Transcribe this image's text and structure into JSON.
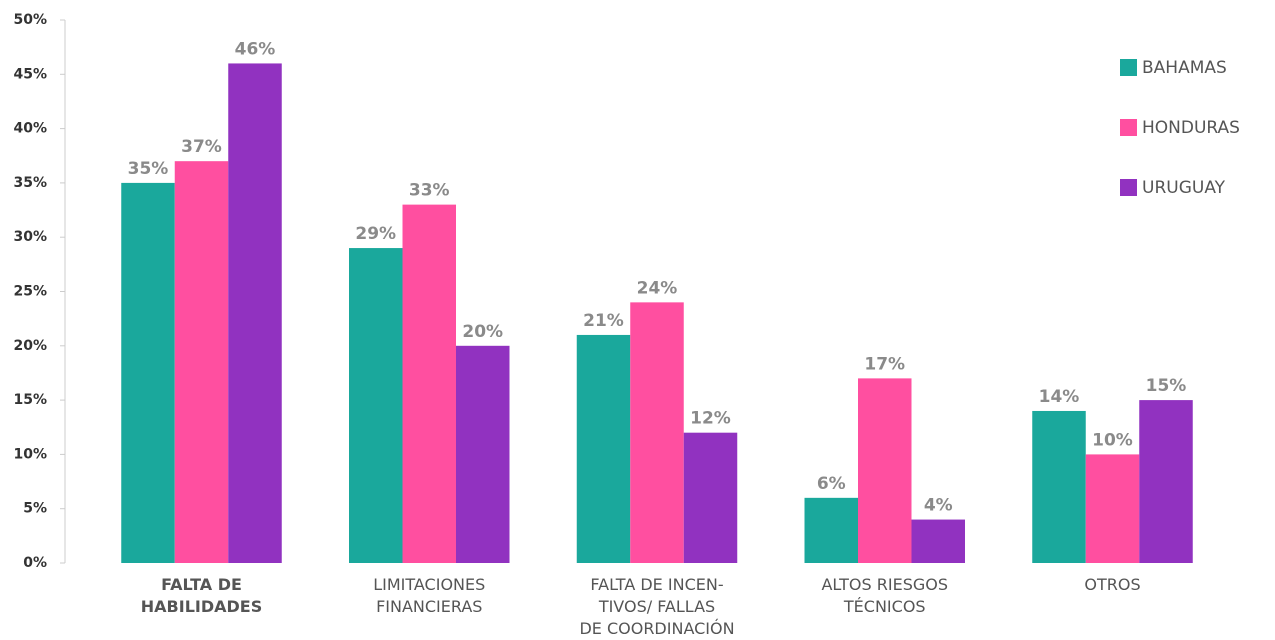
{
  "chart_data": {
    "type": "bar",
    "categories": [
      [
        "FALTA DE",
        "HABILIDADES"
      ],
      [
        "LIMITACIONES",
        "FINANCIERAS"
      ],
      [
        "FALTA DE INCEN-",
        "TIVOS/ FALLAS",
        "DE COORDINACIÓN"
      ],
      [
        "ALTOS RIESGOS",
        "TÉCNICOS"
      ],
      [
        "OTROS"
      ]
    ],
    "series": [
      {
        "name": "BAHAMAS",
        "color": "#1aa89c",
        "values": [
          35,
          29,
          21,
          6,
          14
        ],
        "value_labels": [
          "35%",
          "29%",
          "21%",
          "6%",
          "14%"
        ]
      },
      {
        "name": "HONDURAS",
        "color": "#ff4fa0",
        "values": [
          37,
          33,
          24,
          17,
          10
        ],
        "value_labels": [
          "37%",
          "33%",
          "24%",
          "17%",
          "10%"
        ]
      },
      {
        "name": "URUGUAY",
        "color": "#9132c0",
        "values": [
          46,
          20,
          12,
          4,
          15
        ],
        "value_labels": [
          "46%",
          "20%",
          "12%",
          "4%",
          "15%"
        ]
      }
    ],
    "ylim": [
      0,
      50
    ],
    "yticks": [
      {
        "value": 0,
        "label": "0%"
      },
      {
        "value": 5,
        "label": "5%"
      },
      {
        "value": 10,
        "label": "10%"
      },
      {
        "value": 15,
        "label": "15%"
      },
      {
        "value": 20,
        "label": "20%"
      },
      {
        "value": 25,
        "label": "25%"
      },
      {
        "value": 30,
        "label": "30%"
      },
      {
        "value": 35,
        "label": "35%"
      },
      {
        "value": 40,
        "label": "40%"
      },
      {
        "value": 45,
        "label": "45%"
      },
      {
        "value": 50,
        "label": "50%"
      }
    ],
    "legend": "right"
  }
}
